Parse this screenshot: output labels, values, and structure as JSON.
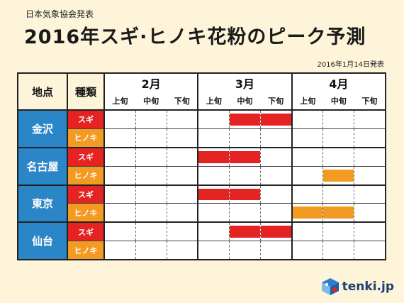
{
  "publisher": "日本気象協会発表",
  "title": "2016年スギ·ヒノキ花粉のピーク予測",
  "date": "2016年1月14日発表",
  "headers": {
    "region": "地点",
    "kind": "種類"
  },
  "months": [
    {
      "label": "2月",
      "deks": [
        "上旬",
        "中旬",
        "下旬"
      ]
    },
    {
      "label": "3月",
      "deks": [
        "上旬",
        "中旬",
        "下旬"
      ]
    },
    {
      "label": "4月",
      "deks": [
        "上旬",
        "中旬",
        "下旬"
      ]
    }
  ],
  "regions": [
    {
      "name": "金沢",
      "rows": [
        {
          "kind": "スギ",
          "type": "sugi",
          "peak": [
            false,
            false,
            false,
            false,
            true,
            true,
            false,
            false,
            false
          ]
        },
        {
          "kind": "ヒノキ",
          "type": "hinoki",
          "peak": [
            false,
            false,
            false,
            false,
            false,
            false,
            false,
            false,
            false
          ]
        }
      ]
    },
    {
      "name": "名古屋",
      "rows": [
        {
          "kind": "スギ",
          "type": "sugi",
          "peak": [
            false,
            false,
            false,
            true,
            true,
            false,
            false,
            false,
            false
          ]
        },
        {
          "kind": "ヒノキ",
          "type": "hinoki",
          "peak": [
            false,
            false,
            false,
            false,
            false,
            false,
            false,
            true,
            false
          ]
        }
      ]
    },
    {
      "name": "東京",
      "rows": [
        {
          "kind": "スギ",
          "type": "sugi",
          "peak": [
            false,
            false,
            false,
            true,
            true,
            false,
            false,
            false,
            false
          ]
        },
        {
          "kind": "ヒノキ",
          "type": "hinoki",
          "peak": [
            false,
            false,
            false,
            false,
            false,
            false,
            true,
            true,
            false
          ]
        }
      ]
    },
    {
      "name": "仙台",
      "rows": [
        {
          "kind": "スギ",
          "type": "sugi",
          "peak": [
            false,
            false,
            false,
            false,
            true,
            true,
            false,
            false,
            false
          ]
        },
        {
          "kind": "ヒノキ",
          "type": "hinoki",
          "peak": [
            false,
            false,
            false,
            false,
            false,
            false,
            false,
            false,
            false
          ]
        }
      ]
    }
  ],
  "colors": {
    "sugi": "#e52323",
    "hinoki": "#f39a23",
    "region_bg": "#2b86c8",
    "page_bg": "#fdf4d9"
  },
  "logo": {
    "text": "tenki.jp",
    "icon": "tenki-logo-icon"
  }
}
